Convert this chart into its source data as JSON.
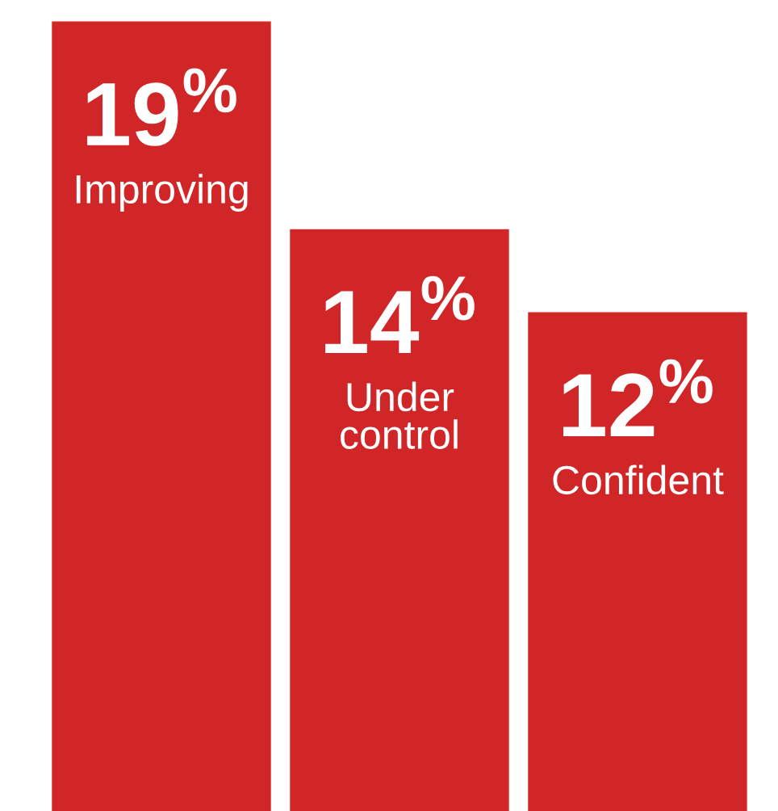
{
  "chart_data": {
    "type": "bar",
    "categories": [
      "Improving",
      "Under control",
      "Confident"
    ],
    "values": [
      19,
      14,
      12
    ],
    "value_labels": [
      "19$^{%}$",
      "14$^{%}$",
      "12$^{%}$"
    ],
    "color": "#d12627"
  }
}
